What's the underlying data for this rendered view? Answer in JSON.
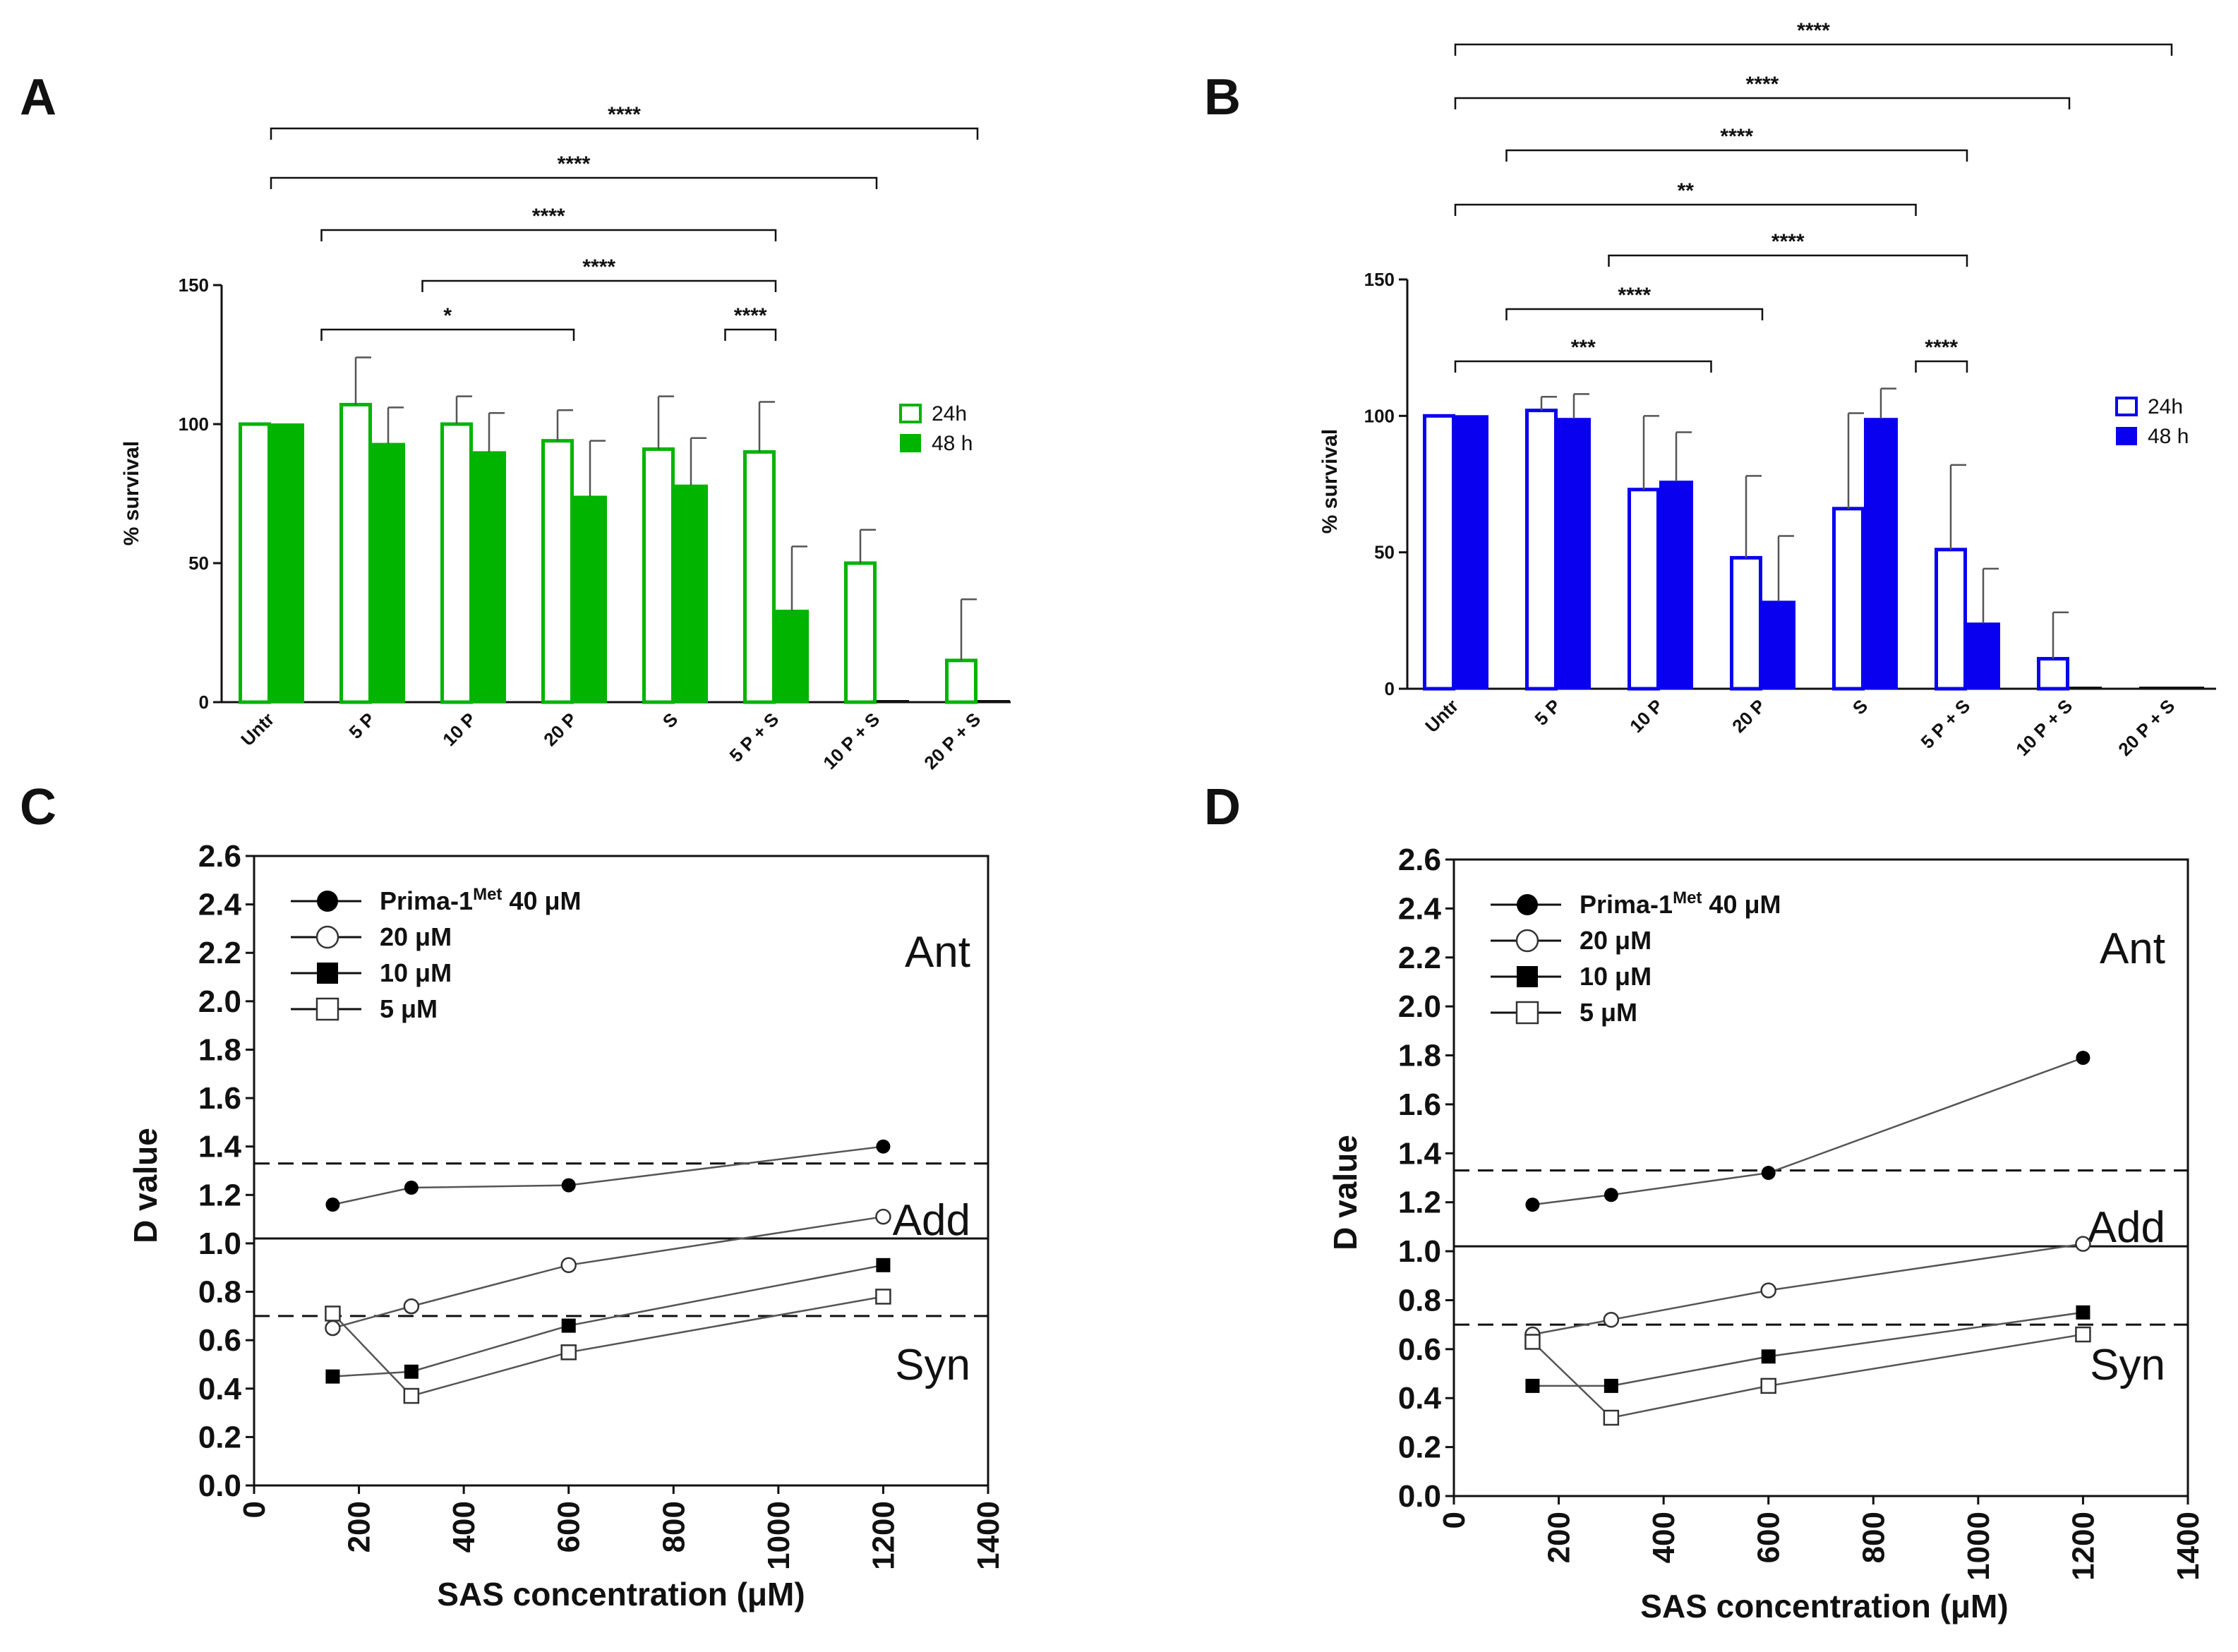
{
  "panels": {
    "A": "A",
    "B": "B",
    "C": "C",
    "D": "D"
  },
  "chart_data": [
    {
      "id": "A",
      "type": "bar",
      "ylabel": "% survival",
      "ylim": [
        0,
        150
      ],
      "yticks": [
        "0",
        "50",
        "100",
        "150"
      ],
      "categories": [
        "Untr",
        "5 P",
        "10 P",
        "20 P",
        "S",
        "5 P + S",
        "10 P + S",
        "20 P + S"
      ],
      "color": "#00b400",
      "series": [
        {
          "name": "24h",
          "style": "open",
          "values": [
            100,
            107,
            100,
            94,
            91,
            90,
            50,
            15
          ],
          "errors": [
            0,
            17,
            10,
            11,
            19,
            18,
            12,
            22
          ]
        },
        {
          "name": "48 h",
          "style": "filled",
          "values": [
            100,
            93,
            90,
            74,
            78,
            33,
            0,
            0
          ],
          "errors": [
            0,
            13,
            14,
            20,
            17,
            23,
            0,
            0
          ]
        }
      ],
      "significance": [
        {
          "from": 0,
          "to": 7,
          "label": "****"
        },
        {
          "from": 0,
          "to": 6,
          "label": "****"
        },
        {
          "from": 0.5,
          "to": 5,
          "label": "****"
        },
        {
          "from": 1.5,
          "to": 5,
          "label": "****"
        },
        {
          "from": 0.5,
          "to": 3,
          "label": "*"
        },
        {
          "from": 4.5,
          "to": 5,
          "label": "****"
        }
      ]
    },
    {
      "id": "B",
      "type": "bar",
      "ylabel": "% survival",
      "ylim": [
        0,
        150
      ],
      "yticks": [
        "0",
        "50",
        "100",
        "150"
      ],
      "categories": [
        "Untr",
        "5 P",
        "10 P",
        "20 P",
        "S",
        "5 P + S",
        "10 P + S",
        "20 P + S"
      ],
      "color": "#0a00f0",
      "series": [
        {
          "name": "24h",
          "style": "open",
          "values": [
            100,
            102,
            73,
            48,
            66,
            51,
            11,
            0
          ],
          "errors": [
            0,
            5,
            27,
            30,
            35,
            31,
            17,
            0
          ]
        },
        {
          "name": "48 h",
          "style": "filled",
          "values": [
            100,
            99,
            76,
            32,
            99,
            24,
            0,
            0
          ],
          "errors": [
            0,
            9,
            18,
            24,
            11,
            20,
            0,
            0
          ]
        }
      ],
      "significance": [
        {
          "from": 0,
          "to": 7,
          "label": "****"
        },
        {
          "from": 0,
          "to": 6,
          "label": "****"
        },
        {
          "from": 0.5,
          "to": 5,
          "label": "****"
        },
        {
          "from": 0,
          "to": 4.5,
          "label": "**"
        },
        {
          "from": 1.5,
          "to": 5,
          "label": "****"
        },
        {
          "from": 0.5,
          "to": 3,
          "label": "****"
        },
        {
          "from": 0,
          "to": 2.5,
          "label": "***"
        },
        {
          "from": 4.5,
          "to": 5,
          "label": "****"
        }
      ]
    },
    {
      "id": "C",
      "type": "line",
      "xlabel": "SAS concentration (μM)",
      "ylabel": "D value",
      "xlim": [
        0,
        1400
      ],
      "ylim": [
        0,
        2.6
      ],
      "xticks": [
        "0",
        "200",
        "400",
        "600",
        "800",
        "1000",
        "1200",
        "1400"
      ],
      "yticks": [
        "0.0",
        "0.2",
        "0.4",
        "0.6",
        "0.8",
        "1.0",
        "1.2",
        "1.4",
        "1.6",
        "1.8",
        "2.0",
        "2.2",
        "2.4",
        "2.6"
      ],
      "x": [
        150,
        300,
        600,
        1200
      ],
      "series": [
        {
          "name": "Prima-1",
          "name_sup": "Met",
          "name_suffix": "40 μM",
          "marker": "filled-circle",
          "values": [
            1.16,
            1.23,
            1.24,
            1.4
          ]
        },
        {
          "name": "20 μM",
          "marker": "open-circle",
          "values": [
            0.65,
            0.74,
            0.91,
            1.11
          ]
        },
        {
          "name": "10 μM",
          "marker": "filled-square",
          "values": [
            0.45,
            0.47,
            0.66,
            0.91
          ]
        },
        {
          "name": "5 μM",
          "marker": "open-square",
          "values": [
            0.71,
            0.37,
            0.55,
            0.78
          ]
        }
      ],
      "ref_lines": [
        {
          "y": 1.33,
          "style": "dashed"
        },
        {
          "y": 1.02,
          "style": "solid"
        },
        {
          "y": 0.7,
          "style": "dashed"
        }
      ],
      "zones": [
        "Ant",
        "Add",
        "Syn"
      ]
    },
    {
      "id": "D",
      "type": "line",
      "xlabel": "SAS concentration (μM)",
      "ylabel": "D value",
      "xlim": [
        0,
        1400
      ],
      "ylim": [
        0,
        2.6
      ],
      "xticks": [
        "0",
        "200",
        "400",
        "600",
        "800",
        "1000",
        "1200",
        "1400"
      ],
      "yticks": [
        "0.0",
        "0.2",
        "0.4",
        "0.6",
        "0.8",
        "1.0",
        "1.2",
        "1.4",
        "1.6",
        "1.8",
        "2.0",
        "2.2",
        "2.4",
        "2.6"
      ],
      "x": [
        150,
        300,
        600,
        1200
      ],
      "series": [
        {
          "name": "Prima-1",
          "name_sup": "Met",
          "name_suffix": "40 μM",
          "marker": "filled-circle",
          "values": [
            1.19,
            1.23,
            1.32,
            1.79
          ]
        },
        {
          "name": "20 μM",
          "marker": "open-circle",
          "values": [
            0.66,
            0.72,
            0.84,
            1.03
          ]
        },
        {
          "name": "10 μM",
          "marker": "filled-square",
          "values": [
            0.45,
            0.45,
            0.57,
            0.75
          ]
        },
        {
          "name": "5 μM",
          "marker": "open-square",
          "values": [
            0.63,
            0.32,
            0.45,
            0.66
          ]
        }
      ],
      "ref_lines": [
        {
          "y": 1.33,
          "style": "dashed"
        },
        {
          "y": 1.02,
          "style": "solid"
        },
        {
          "y": 0.7,
          "style": "dashed"
        }
      ],
      "zones": [
        "Ant",
        "Add",
        "Syn"
      ]
    }
  ]
}
